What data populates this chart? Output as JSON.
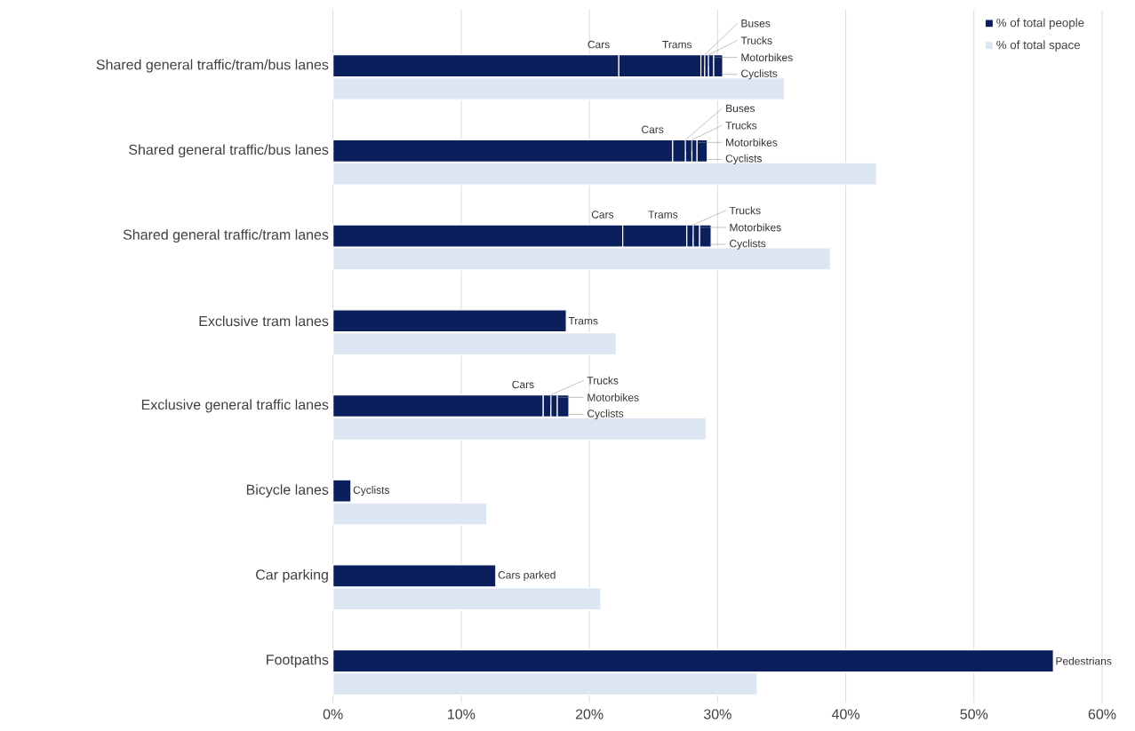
{
  "chart_data": {
    "type": "bar",
    "orientation": "horizontal",
    "categories": [
      "Shared general traffic/tram/bus lanes",
      "Shared general traffic/bus lanes",
      "Shared general traffic/tram lanes",
      "Exclusive tram lanes",
      "Exclusive general traffic lanes",
      "Bicycle lanes",
      "Car parking",
      "Footpaths"
    ],
    "series": [
      {
        "name": "% of total people",
        "color": "#0a1f5c",
        "values": [
          22.3,
          26.5,
          22.6,
          null,
          16.4,
          null,
          null,
          null
        ],
        "base": [
          0,
          0,
          0,
          null,
          0,
          null,
          null,
          null
        ]
      },
      {
        "color": "#0a1f5c",
        "values": [
          6.4,
          null,
          5.0,
          18.2,
          null,
          null,
          null,
          null
        ],
        "base": [
          22.3,
          null,
          22.6,
          0,
          null,
          null,
          null,
          null
        ]
      },
      {
        "color": "#0a1f5c",
        "values": [
          0.3,
          1.0,
          null,
          null,
          null,
          null,
          null,
          null
        ],
        "base": [
          28.7,
          26.5,
          null,
          null,
          null,
          null,
          null,
          null
        ]
      },
      {
        "color": "#0a1f5c",
        "values": [
          0.3,
          0.5,
          0.5,
          null,
          0.6,
          null,
          null,
          null
        ],
        "base": [
          29.0,
          27.5,
          27.6,
          null,
          16.4,
          null,
          null,
          null
        ]
      },
      {
        "color": "#0a1f5c",
        "values": [
          0.4,
          0.4,
          0.5,
          null,
          0.5,
          null,
          null,
          null
        ],
        "base": [
          29.3,
          28.0,
          28.1,
          null,
          17.0,
          null,
          null,
          null
        ]
      },
      {
        "color": "#0a1f5c",
        "values": [
          0.7,
          0.8,
          0.9,
          null,
          0.9,
          1.4,
          null,
          null
        ],
        "base": [
          29.7,
          28.4,
          28.6,
          null,
          17.5,
          0,
          null,
          null
        ]
      },
      {
        "color": "#0a1f5c",
        "values": [
          null,
          null,
          null,
          null,
          null,
          null,
          12.7,
          null
        ],
        "base": [
          null,
          null,
          null,
          null,
          null,
          null,
          0,
          null
        ]
      },
      {
        "color": "#0a1f5c",
        "values": [
          null,
          null,
          null,
          null,
          null,
          null,
          null,
          56.2
        ],
        "base": [
          null,
          null,
          null,
          null,
          null,
          null,
          null,
          0
        ]
      },
      {
        "name": "% of total space",
        "color": "#dce6f2",
        "values": [
          35.2,
          42.4,
          38.8,
          22.1,
          29.1,
          12.0,
          20.9,
          33.1
        ]
      }
    ],
    "xlim": [
      0,
      60
    ],
    "xticks": [
      {
        "value": 0,
        "label": "0%"
      },
      {
        "value": 10,
        "label": "10%"
      },
      {
        "value": 20,
        "label": "20%"
      },
      {
        "value": 30,
        "label": "30%"
      },
      {
        "value": 40,
        "label": "40%"
      },
      {
        "value": 50,
        "label": "50%"
      },
      {
        "value": 60,
        "label": "60%"
      }
    ],
    "grid": "x",
    "legend": "top right",
    "annotations": [
      {
        "text": "Cars",
        "x": 22.3,
        "y": "Shared general traffic/tram/bus lanes"
      },
      {
        "text": "Trams",
        "x": 28.7,
        "y": "Shared general traffic/tram/bus lanes"
      },
      {
        "text": "Buses",
        "x": 29.0,
        "y": "Shared general traffic/tram/bus lanes"
      },
      {
        "text": "Trucks",
        "x": 29.3,
        "y": "Shared general traffic/tram/bus lanes"
      },
      {
        "text": "Motorbikes",
        "x": 29.7,
        "y": "Shared general traffic/tram/bus lanes"
      },
      {
        "text": "Cyclists",
        "x": 30.4,
        "y": "Shared general traffic/tram/bus lanes"
      },
      {
        "text": "Cars",
        "x": 26.5,
        "y": "Shared general traffic/bus lanes"
      },
      {
        "text": "Buses",
        "x": 27.5,
        "y": "Shared general traffic/bus lanes"
      },
      {
        "text": "Trucks",
        "x": 28.0,
        "y": "Shared general traffic/bus lanes"
      },
      {
        "text": "Motorbikes",
        "x": 28.4,
        "y": "Shared general traffic/bus lanes"
      },
      {
        "text": "Cyclists",
        "x": 29.2,
        "y": "Shared general traffic/bus lanes"
      },
      {
        "text": "Cars",
        "x": 22.6,
        "y": "Shared general traffic/tram lanes"
      },
      {
        "text": "Trams",
        "x": 27.6,
        "y": "Shared general traffic/tram lanes"
      },
      {
        "text": "Trucks",
        "x": 28.1,
        "y": "Shared general traffic/tram lanes"
      },
      {
        "text": "Motorbikes",
        "x": 28.6,
        "y": "Shared general traffic/tram lanes"
      },
      {
        "text": "Cyclists",
        "x": 29.5,
        "y": "Shared general traffic/tram lanes"
      },
      {
        "text": "Trams",
        "x": 18.2,
        "y": "Exclusive tram lanes"
      },
      {
        "text": "Cars",
        "x": 16.4,
        "y": "Exclusive general traffic lanes"
      },
      {
        "text": "Trucks",
        "x": 17.0,
        "y": "Exclusive general traffic lanes"
      },
      {
        "text": "Motorbikes",
        "x": 17.5,
        "y": "Exclusive general traffic lanes"
      },
      {
        "text": "Cyclists",
        "x": 18.4,
        "y": "Exclusive general traffic lanes"
      },
      {
        "text": "Cyclists",
        "x": 1.4,
        "y": "Bicycle lanes"
      },
      {
        "text": "Cars parked",
        "x": 12.7,
        "y": "Car parking"
      },
      {
        "text": "Pedestrians",
        "x": 56.2,
        "y": "Footpaths"
      }
    ]
  }
}
